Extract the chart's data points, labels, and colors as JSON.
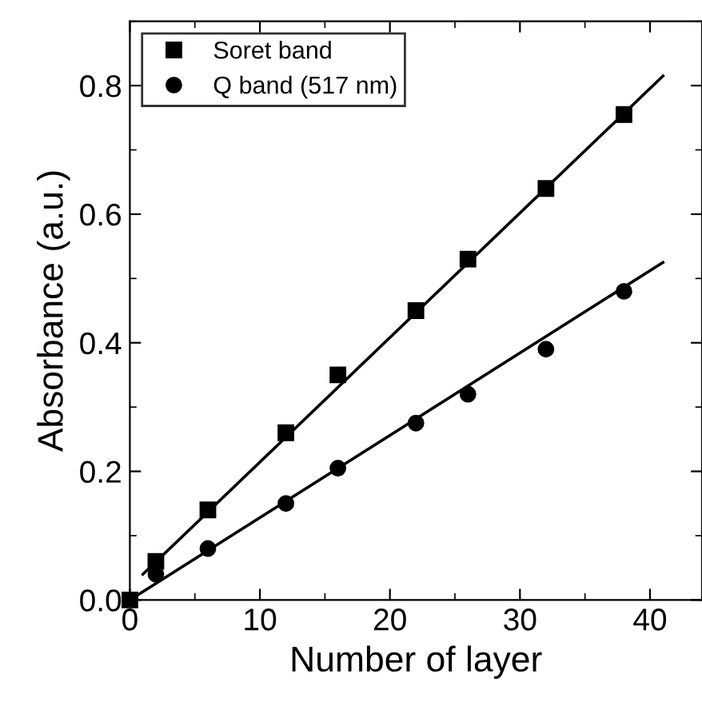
{
  "chart_data": {
    "type": "scatter",
    "xlabel": "Number of layer",
    "ylabel": "Absorbance (a.u.)",
    "xlim": [
      0,
      44
    ],
    "xticks": [
      0,
      10,
      20,
      30,
      40
    ],
    "ylim": [
      0,
      0.9
    ],
    "yticks": [
      {
        "value": 0,
        "label": "0.0"
      },
      0.2,
      0.4,
      0.6,
      0.8
    ],
    "grid": false,
    "legend": "top left",
    "series": [
      {
        "name": "Soret band",
        "color": "#000000",
        "marker": "square",
        "x": [
          0,
          2,
          6,
          12,
          16,
          22,
          26,
          32,
          38
        ],
        "values": [
          0.0,
          0.06,
          0.14,
          0.26,
          0.35,
          0.45,
          0.53,
          0.64,
          0.755
        ]
      },
      {
        "name": "Q band (517 nm)",
        "color": "#000000",
        "marker": "circle",
        "x": [
          2,
          6,
          12,
          16,
          22,
          26,
          32,
          38
        ],
        "values": [
          0.04,
          0.08,
          0.15,
          0.205,
          0.275,
          0.32,
          0.39,
          0.48
        ]
      },
      {
        "type": "line",
        "color": "#000000",
        "marker": "none",
        "x": [
          1,
          41
        ],
        "values": [
          0.04,
          0.815
        ]
      },
      {
        "type": "line",
        "color": "#000000",
        "marker": "none",
        "x": [
          0,
          41
        ],
        "values": [
          0.0,
          0.525
        ]
      }
    ]
  }
}
